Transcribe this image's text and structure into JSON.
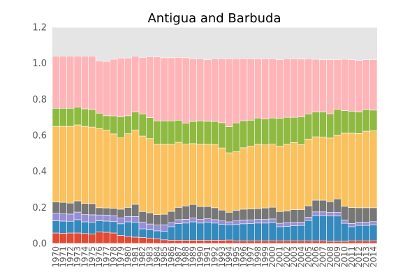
{
  "chart_data": {
    "type": "bar",
    "stacked": true,
    "title": "Antigua and Barbuda",
    "xlabel": "",
    "ylabel": "",
    "ylim": [
      0,
      1.2
    ],
    "yticks": [
      0.0,
      0.2,
      0.4,
      0.6,
      0.8,
      1.0,
      1.2
    ],
    "ytick_labels": [
      "0.0",
      "0.2",
      "0.4",
      "0.6",
      "0.8",
      "1.0",
      "1.2"
    ],
    "grid": true,
    "legend": "none",
    "categories": [
      "1970",
      "1971",
      "1972",
      "1973",
      "1974",
      "1975",
      "1976",
      "1977",
      "1978",
      "1979",
      "1980",
      "1981",
      "1982",
      "1983",
      "1984",
      "1985",
      "1986",
      "1987",
      "1988",
      "1989",
      "1990",
      "1991",
      "1992",
      "1993",
      "1994",
      "1995",
      "1996",
      "1997",
      "1998",
      "1999",
      "2000",
      "2001",
      "2002",
      "2003",
      "2004",
      "2005",
      "2006",
      "2007",
      "2008",
      "2009",
      "2010",
      "2011",
      "2012",
      "2013",
      "2014"
    ],
    "series": [
      {
        "color": "#e24a33",
        "values": [
          0.058,
          0.056,
          0.058,
          0.058,
          0.055,
          0.052,
          0.063,
          0.062,
          0.058,
          0.045,
          0.038,
          0.035,
          0.033,
          0.03,
          0.025,
          0.02,
          0.018,
          0.018,
          0.017,
          0.018,
          0.018,
          0.017,
          0.018,
          0.018,
          0.019,
          0.015,
          0.015,
          0.015,
          0.015,
          0.015,
          0.015,
          0.015,
          0.015,
          0.015,
          0.015,
          0.015,
          0.015,
          0.015,
          0.012,
          0.012,
          0.012,
          0.015,
          0.015,
          0.015,
          0.015
        ]
      },
      {
        "color": "#348abd",
        "values": [
          0.068,
          0.068,
          0.065,
          0.074,
          0.065,
          0.065,
          0.063,
          0.062,
          0.063,
          0.064,
          0.082,
          0.082,
          0.048,
          0.046,
          0.045,
          0.048,
          0.075,
          0.092,
          0.096,
          0.102,
          0.095,
          0.1,
          0.095,
          0.088,
          0.083,
          0.09,
          0.094,
          0.096,
          0.098,
          0.098,
          0.101,
          0.078,
          0.08,
          0.083,
          0.085,
          0.112,
          0.14,
          0.14,
          0.14,
          0.14,
          0.1,
          0.078,
          0.085,
          0.085,
          0.088
        ]
      },
      {
        "color": "#988ed5",
        "values": [
          0.042,
          0.04,
          0.04,
          0.042,
          0.04,
          0.042,
          0.032,
          0.033,
          0.032,
          0.032,
          0.03,
          0.032,
          0.038,
          0.032,
          0.032,
          0.035,
          0.022,
          0.022,
          0.021,
          0.022,
          0.02,
          0.02,
          0.019,
          0.019,
          0.018,
          0.02,
          0.021,
          0.02,
          0.02,
          0.02,
          0.02,
          0.019,
          0.02,
          0.018,
          0.018,
          0.018,
          0.02,
          0.02,
          0.02,
          0.02,
          0.018,
          0.018,
          0.018,
          0.018,
          0.018
        ]
      },
      {
        "color": "#777777",
        "values": [
          0.062,
          0.064,
          0.061,
          0.062,
          0.062,
          0.062,
          0.04,
          0.04,
          0.042,
          0.049,
          0.05,
          0.068,
          0.058,
          0.062,
          0.058,
          0.059,
          0.063,
          0.068,
          0.074,
          0.074,
          0.072,
          0.068,
          0.066,
          0.06,
          0.053,
          0.059,
          0.06,
          0.06,
          0.06,
          0.064,
          0.065,
          0.065,
          0.065,
          0.072,
          0.07,
          0.064,
          0.065,
          0.065,
          0.06,
          0.075,
          0.076,
          0.088,
          0.08,
          0.08,
          0.077
        ]
      },
      {
        "color": "#fbc15e",
        "values": [
          0.42,
          0.422,
          0.426,
          0.422,
          0.428,
          0.425,
          0.44,
          0.432,
          0.413,
          0.396,
          0.409,
          0.413,
          0.419,
          0.412,
          0.39,
          0.388,
          0.372,
          0.361,
          0.343,
          0.338,
          0.345,
          0.345,
          0.351,
          0.345,
          0.33,
          0.325,
          0.341,
          0.349,
          0.357,
          0.35,
          0.35,
          0.363,
          0.37,
          0.372,
          0.36,
          0.37,
          0.352,
          0.35,
          0.353,
          0.353,
          0.406,
          0.413,
          0.412,
          0.425,
          0.427
        ]
      },
      {
        "color": "#8eba42",
        "values": [
          0.1,
          0.1,
          0.1,
          0.098,
          0.097,
          0.097,
          0.085,
          0.08,
          0.1,
          0.116,
          0.1,
          0.1,
          0.123,
          0.117,
          0.13,
          0.13,
          0.13,
          0.123,
          0.117,
          0.123,
          0.13,
          0.128,
          0.128,
          0.14,
          0.145,
          0.16,
          0.15,
          0.144,
          0.146,
          0.144,
          0.145,
          0.155,
          0.15,
          0.14,
          0.155,
          0.14,
          0.138,
          0.14,
          0.135,
          0.145,
          0.125,
          0.122,
          0.12,
          0.12,
          0.115
        ]
      },
      {
        "color": "#ffb5b8",
        "values": [
          0.29,
          0.29,
          0.29,
          0.284,
          0.293,
          0.297,
          0.29,
          0.301,
          0.314,
          0.327,
          0.32,
          0.31,
          0.313,
          0.338,
          0.355,
          0.35,
          0.35,
          0.348,
          0.362,
          0.348,
          0.345,
          0.342,
          0.348,
          0.355,
          0.377,
          0.356,
          0.344,
          0.341,
          0.329,
          0.334,
          0.329,
          0.325,
          0.325,
          0.325,
          0.32,
          0.306,
          0.292,
          0.29,
          0.3,
          0.275,
          0.285,
          0.286,
          0.286,
          0.277,
          0.28
        ]
      }
    ]
  }
}
